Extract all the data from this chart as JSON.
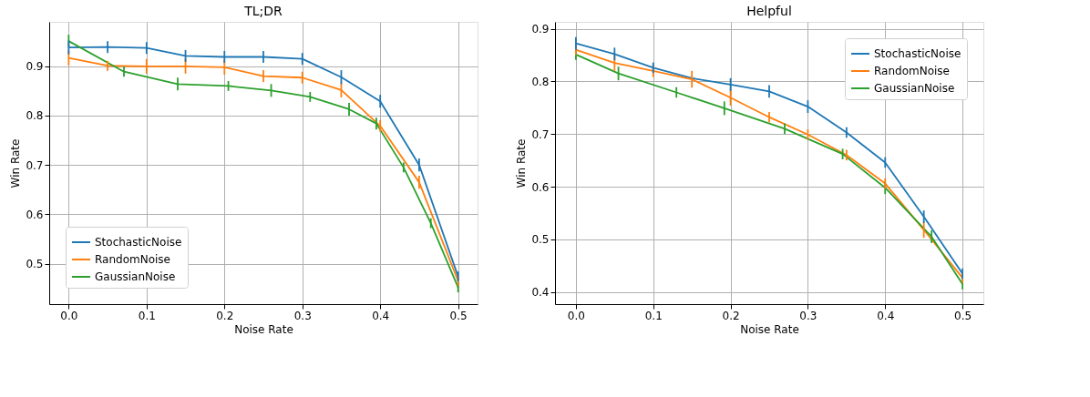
{
  "chart_data": [
    {
      "type": "line",
      "title": "TL;DR",
      "xlabel": "Noise Rate",
      "ylabel": "Win Rate",
      "xlim": [
        -0.025,
        0.525
      ],
      "ylim": [
        0.418,
        0.99
      ],
      "xticks": [
        {
          "value": 0,
          "label": "0.0"
        },
        0.1,
        0.2,
        0.3,
        0.4,
        0.5
      ],
      "yticks": [
        0.5,
        0.6,
        0.7,
        0.8,
        0.9
      ],
      "grid": true,
      "legend": "bottom left",
      "x": [
        0,
        0.05,
        0.1,
        0.15,
        0.2,
        0.25,
        0.3,
        0.35,
        0.4,
        0.45,
        0.5
      ],
      "series": [
        {
          "name": "StochasticNoise",
          "color": "#1f77b4",
          "values": [
            0.938,
            0.939,
            0.937,
            0.921,
            0.919,
            0.919,
            0.915,
            0.878,
            0.829,
            0.7,
            0.474
          ],
          "errors": [
            0.014,
            0.012,
            0.012,
            0.012,
            0.012,
            0.012,
            0.012,
            0.014,
            0.013,
            0.013,
            0.01
          ]
        },
        {
          "name": "RandomNoise",
          "color": "#ff7f0e",
          "values": [
            0.917,
            0.901,
            0.9,
            0.9,
            0.898,
            0.88,
            0.877,
            0.852,
            0.779,
            0.665,
            0.465
          ],
          "errors": [
            0.015,
            0.01,
            0.015,
            0.015,
            0.015,
            0.012,
            0.012,
            0.015,
            0.012,
            0.013,
            0.01
          ]
        },
        {
          "name": "GaussianNoise",
          "color": "#2ca02c",
          "x": [
            0,
            0.071,
            0.14,
            0.205,
            0.26,
            0.31,
            0.36,
            0.395,
            0.43,
            0.465,
            0.5
          ],
          "values": [
            0.951,
            0.889,
            0.864,
            0.86,
            0.851,
            0.838,
            0.813,
            0.784,
            0.695,
            0.582,
            0.452
          ],
          "errors": [
            0.013,
            0.01,
            0.013,
            0.01,
            0.013,
            0.01,
            0.013,
            0.012,
            0.01,
            0.01,
            0.01
          ]
        }
      ]
    },
    {
      "type": "line",
      "title": "Helpful",
      "xlabel": "Noise Rate",
      "ylabel": "Win Rate",
      "xlim": [
        -0.027,
        0.527
      ],
      "ylim": [
        0.377,
        0.913
      ],
      "xticks": [
        {
          "value": 0,
          "label": "0.0"
        },
        0.1,
        0.2,
        0.3,
        0.4,
        0.5
      ],
      "yticks": [
        0.4,
        0.5,
        0.6,
        0.7,
        0.8,
        0.9
      ],
      "grid": true,
      "legend": "top right",
      "x": [
        0,
        0.05,
        0.1,
        0.15,
        0.2,
        0.25,
        0.3,
        0.35,
        0.4,
        0.45,
        0.5
      ],
      "series": [
        {
          "name": "StochasticNoise",
          "color": "#1f77b4",
          "values": [
            0.872,
            0.852,
            0.826,
            0.806,
            0.794,
            0.781,
            0.752,
            0.703,
            0.646,
            0.543,
            0.435
          ],
          "errors": [
            0.012,
            0.012,
            0.01,
            null,
            0.012,
            0.012,
            0.012,
            0.01,
            0.01,
            0.012,
            0.01
          ]
        },
        {
          "name": "RandomNoise",
          "color": "#ff7f0e",
          "values": [
            0.86,
            0.835,
            0.82,
            0.804,
            0.769,
            0.732,
            0.699,
            0.66,
            0.606,
            0.518,
            0.427
          ],
          "errors": [
            0.01,
            0.015,
            0.012,
            0.016,
            0.015,
            0.01,
            0.01,
            0.01,
            0.01,
            0.015,
            0.01
          ]
        },
        {
          "name": "GaussianNoise",
          "color": "#2ca02c",
          "x": [
            0,
            0.055,
            0.13,
            0.192,
            0.27,
            0.345,
            0.4,
            0.46,
            0.5
          ],
          "values": [
            0.851,
            0.815,
            0.779,
            0.749,
            0.71,
            0.662,
            0.598,
            0.505,
            0.415
          ],
          "errors": [
            0.01,
            0.013,
            0.01,
            0.013,
            0.01,
            0.01,
            0.012,
            0.012,
            0.01
          ]
        }
      ]
    }
  ]
}
